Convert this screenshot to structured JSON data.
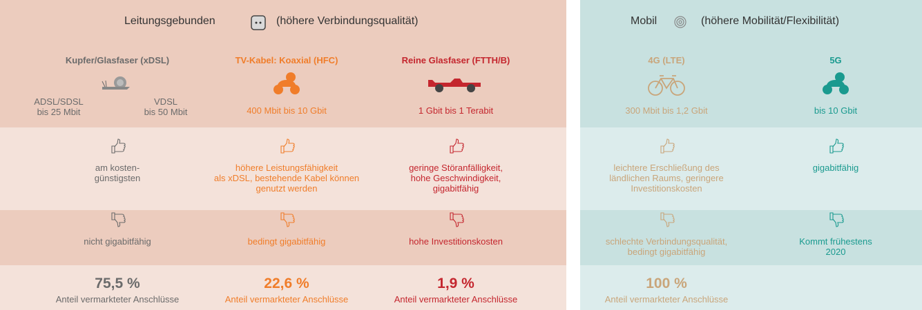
{
  "panels": [
    {
      "title": "Leitungsgebunden",
      "subtitle": "(höhere Verbindungsqualität)",
      "columns": [
        {
          "name": "Kupfer/Glasfaser (xDSL)",
          "color": "#6b6b6b",
          "speed": [
            "ADSL/SDSL",
            "bis 25 Mbit",
            "VDSL",
            "bis 50 Mbit"
          ],
          "pros": [
            "am kosten-",
            "günstigsten"
          ],
          "cons": [
            "nicht gigabitfähig"
          ],
          "share": "75,5 %",
          "share_label": "Anteil vermarkteter Anschlüsse"
        },
        {
          "name": "TV-Kabel: Koaxial (HFC)",
          "color": "#f07d2a",
          "speed": [
            "400 Mbit bis 10 Gbit"
          ],
          "pros": [
            "höhere Leistungsfähigkeit",
            "als xDSL, bestehende Kabel können",
            "genutzt werden"
          ],
          "cons": [
            "bedingt gigabitfähig"
          ],
          "share": "22,6 %",
          "share_label": "Anteil vermarkteter Anschlüsse"
        },
        {
          "name": "Reine Glasfaser (FTTH/B)",
          "color": "#c4262e",
          "speed": [
            "1 Gbit bis 1 Terabit"
          ],
          "pros": [
            "geringe Störanfälligkeit,",
            "hohe Geschwindigkeit,",
            "gigabitfähig"
          ],
          "cons": [
            "hohe Investitionskosten"
          ],
          "share": "1,9 %",
          "share_label": "Anteil vermarkteter Anschlüsse"
        }
      ]
    },
    {
      "title": "Mobil",
      "subtitle": "(höhere Mobilität/Flexibilität)",
      "columns": [
        {
          "name": "4G (LTE)",
          "color": "#c9a57a",
          "speed": [
            "300 Mbit bis 1,2 Gbit"
          ],
          "pros": [
            "leichtere Erschließung des",
            "ländlichen Raums, geringere",
            "Investitionskosten"
          ],
          "cons": [
            "schlechte Verbindungsqualität,",
            "bedingt gigabitfähig"
          ],
          "share": "100 %",
          "share_label": "Anteil vermarkteter Anschlüsse"
        },
        {
          "name": "5G",
          "color": "#1a9a8f",
          "speed": [
            "bis 10 Gbit"
          ],
          "pros": [
            "gigabitfähig"
          ],
          "cons": [
            "Kommt frühestens",
            "2020"
          ]
        }
      ]
    }
  ]
}
